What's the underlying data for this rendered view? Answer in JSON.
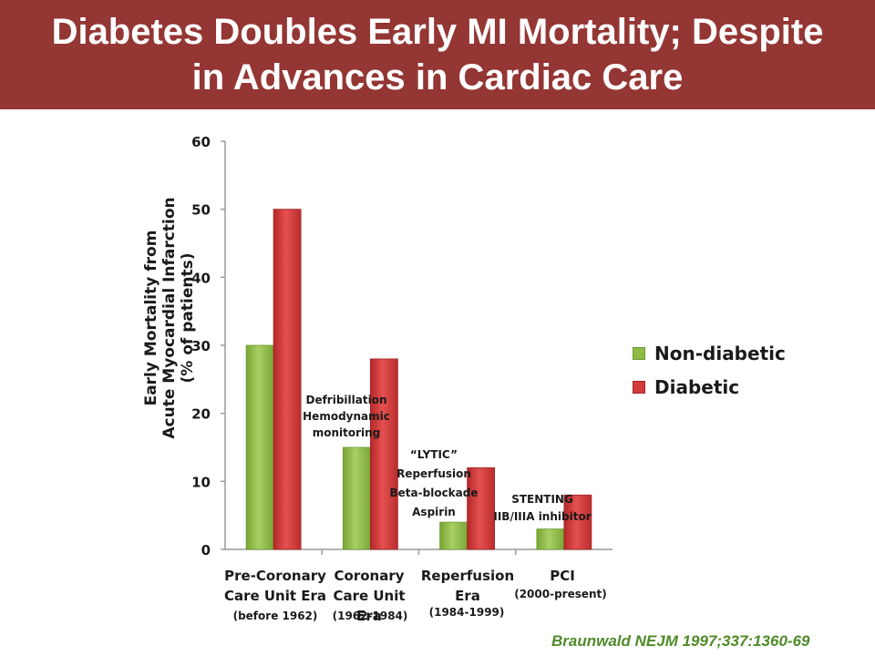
{
  "slide": {
    "title_line1": "Diabetes Doubles Early MI Mortality; Despite",
    "title_line2": "in Advances in Cardiac Care",
    "citation": "Braunwald NEJM 1997;337:1360-69",
    "title_bar_color": "#943634",
    "citation_color": "#4f8a27"
  },
  "chart_data": {
    "type": "bar",
    "categories": [
      "Pre-Coronary Care Unit Era",
      "Coronary Care Unit Era",
      "Reperfusion Era",
      "PCI"
    ],
    "category_label_lines": [
      [
        "Pre-Coronary",
        "Care Unit Era"
      ],
      [
        "Coronary",
        "Care Unit Era"
      ],
      [
        "Reperfusion",
        "Era"
      ],
      [
        "PCI"
      ]
    ],
    "category_years": [
      "(before 1962)",
      "(1962-1984)",
      "(1984-1999)",
      "(2000-present)"
    ],
    "series": [
      {
        "name": "Non-diabetic",
        "values": [
          30,
          15,
          4,
          3
        ],
        "color": "#8dbb45"
      },
      {
        "name": "Diabetic",
        "values": [
          50,
          28,
          12,
          8
        ],
        "color": "#d23b3b"
      }
    ],
    "ylabel_lines": [
      "Early Mortality from",
      "Acute Myocardial Infarction",
      "(% of patients)"
    ],
    "ylim": [
      0,
      60
    ],
    "yticks": [
      0,
      10,
      20,
      30,
      40,
      50,
      60
    ],
    "grid": false,
    "legend_position": "right",
    "annotations": [
      [
        "Defribillation",
        "Hemodynamic",
        "monitoring"
      ],
      [
        "“LYTIC”",
        "Reperfusion",
        "Beta-blockade",
        "Aspirin"
      ],
      [
        "STENTING",
        "IIB/IIIA inhibitor"
      ]
    ]
  }
}
